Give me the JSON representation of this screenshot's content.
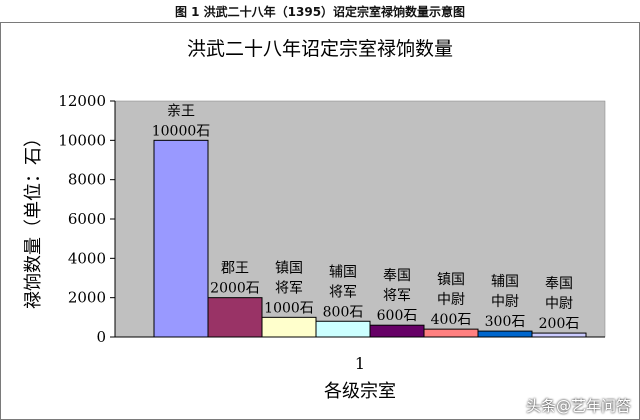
{
  "figure_caption": "图 1 洪武二十八年（1395）诏定宗室禄饷数量示意图",
  "watermark": "头条@艺年问答",
  "chart_data": {
    "type": "bar",
    "title": "洪武二十八年诏定宗室禄饷数量",
    "xlabel": "各级宗室",
    "ylabel": "禄饷数量（单位：石）",
    "category_tick": "1",
    "ylim": [
      0,
      12000
    ],
    "yticks": [
      0,
      2000,
      4000,
      6000,
      8000,
      10000,
      12000
    ],
    "grid": false,
    "legend": "none",
    "plot_background": "#c0c0c0",
    "series": [
      {
        "label": [
          "亲王",
          "10000石"
        ],
        "value": 10000,
        "color": "#9999ff"
      },
      {
        "label": [
          "郡王",
          "2000石"
        ],
        "value": 2000,
        "color": "#993366"
      },
      {
        "label": [
          "镇国",
          "将军",
          "1000石"
        ],
        "value": 1000,
        "color": "#ffffcc"
      },
      {
        "label": [
          "辅国",
          "将军",
          "800石"
        ],
        "value": 800,
        "color": "#ccffff"
      },
      {
        "label": [
          "奉国",
          "将军",
          "600石"
        ],
        "value": 600,
        "color": "#660066"
      },
      {
        "label": [
          "镇国",
          "中尉",
          "400石"
        ],
        "value": 400,
        "color": "#ff8080"
      },
      {
        "label": [
          "辅国",
          "中尉",
          "300石"
        ],
        "value": 300,
        "color": "#0066cc"
      },
      {
        "label": [
          "奉国",
          "中尉",
          "200石"
        ],
        "value": 200,
        "color": "#ccccff"
      }
    ]
  }
}
